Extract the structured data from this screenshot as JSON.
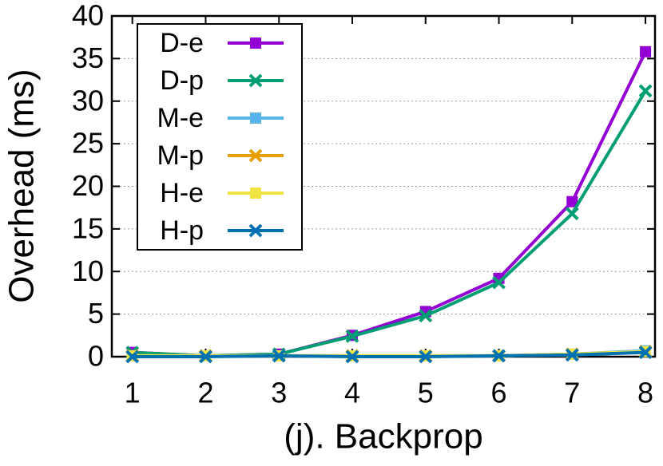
{
  "chart_data": {
    "type": "line",
    "x_label": "(j). Backprop",
    "y_label": "Overhead (ms)",
    "x": [
      1,
      2,
      3,
      4,
      5,
      6,
      7,
      8
    ],
    "xlim": [
      0.72,
      8.13
    ],
    "xticks": [
      1,
      2,
      3,
      4,
      5,
      6,
      7,
      8
    ],
    "ylim": [
      0,
      40
    ],
    "yticks": [
      0,
      5,
      10,
      15,
      20,
      25,
      30,
      35,
      40
    ],
    "grid": true,
    "legend": "top-left",
    "series": [
      {
        "name": "D-e",
        "color": "#9400d3",
        "marker": "square",
        "values": [
          0.5,
          0.1,
          0.3,
          2.5,
          5.3,
          9.2,
          18.2,
          35.8
        ]
      },
      {
        "name": "D-p",
        "color": "#009e73",
        "marker": "cross",
        "values": [
          0.5,
          0.1,
          0.3,
          2.4,
          4.8,
          8.7,
          16.8,
          31.2
        ]
      },
      {
        "name": "M-e",
        "color": "#56b4e9",
        "marker": "square",
        "values": [
          0.1,
          0.1,
          0.1,
          0.1,
          0.1,
          0.1,
          0.3,
          0.7
        ]
      },
      {
        "name": "M-p",
        "color": "#e69f00",
        "marker": "cross",
        "values": [
          0.1,
          0.1,
          0.1,
          0.1,
          0.1,
          0.1,
          0.3,
          0.6
        ]
      },
      {
        "name": "H-e",
        "color": "#f0e442",
        "marker": "square",
        "values": [
          0.1,
          0.1,
          0.1,
          0.1,
          0.1,
          0.1,
          0.3,
          0.6
        ]
      },
      {
        "name": "H-p",
        "color": "#0072b2",
        "marker": "cross",
        "values": [
          0.0,
          0.0,
          0.1,
          0.0,
          0.0,
          0.1,
          0.2,
          0.5
        ]
      }
    ]
  }
}
